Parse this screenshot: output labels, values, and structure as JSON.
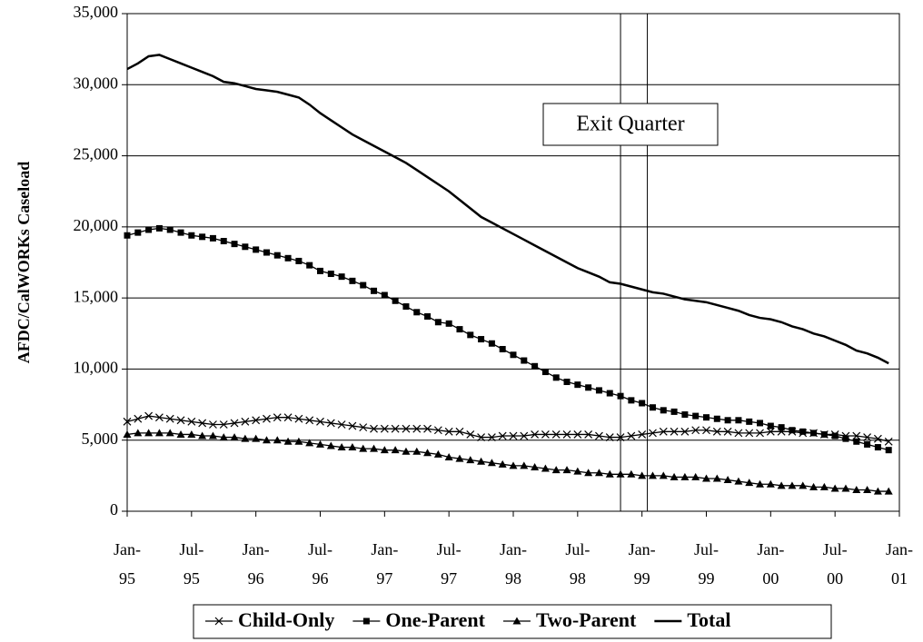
{
  "chart_data": {
    "type": "line",
    "y_label": "AFDC/CalWORKs Caseload",
    "categories": [
      "Jan-95",
      null,
      null,
      null,
      null,
      null,
      "Jul-95",
      null,
      null,
      null,
      null,
      null,
      "Jan-96",
      null,
      null,
      null,
      null,
      null,
      "Jul-96",
      null,
      null,
      null,
      null,
      null,
      "Jan-97",
      null,
      null,
      null,
      null,
      null,
      "Jul-97",
      null,
      null,
      null,
      null,
      null,
      "Jan-98",
      null,
      null,
      null,
      null,
      null,
      "Jul-98",
      null,
      null,
      null,
      null,
      null,
      "Jan-99",
      null,
      null,
      null,
      null,
      null,
      "Jul-99",
      null,
      null,
      null,
      null,
      null,
      "Jan-00",
      null,
      null,
      null,
      null,
      null,
      "Jul-00",
      null,
      null,
      null,
      null,
      null,
      "Jan-01"
    ],
    "series": [
      {
        "name": "Child-Only",
        "color": "#000000",
        "marker": "x",
        "values": [
          6300,
          6500,
          6700,
          6600,
          6500,
          6400,
          6300,
          6200,
          6100,
          6100,
          6200,
          6300,
          6400,
          6500,
          6600,
          6600,
          6500,
          6400,
          6300,
          6200,
          6100,
          6000,
          5900,
          5800,
          5800,
          5800,
          5800,
          5800,
          5800,
          5700,
          5600,
          5600,
          5400,
          5200,
          5200,
          5300,
          5300,
          5300,
          5400,
          5400,
          5400,
          5400,
          5400,
          5400,
          5300,
          5200,
          5200,
          5300,
          5400,
          5500,
          5600,
          5600,
          5600,
          5700,
          5700,
          5600,
          5600,
          5500,
          5500,
          5500,
          5600,
          5600,
          5600,
          5500,
          5500,
          5400,
          5400,
          5300,
          5300,
          5200,
          5100,
          4900,
          null
        ]
      },
      {
        "name": "One-Parent",
        "color": "#000000",
        "marker": "square",
        "values": [
          19400,
          19600,
          19800,
          19900,
          19800,
          19600,
          19400,
          19300,
          19200,
          19000,
          18800,
          18600,
          18400,
          18200,
          18000,
          17800,
          17600,
          17300,
          16900,
          16700,
          16500,
          16200,
          15900,
          15500,
          15200,
          14800,
          14400,
          14000,
          13700,
          13300,
          13200,
          12800,
          12400,
          12100,
          11800,
          11400,
          11000,
          10600,
          10200,
          9800,
          9400,
          9100,
          8900,
          8700,
          8500,
          8300,
          8100,
          7800,
          7600,
          7300,
          7100,
          7000,
          6800,
          6700,
          6600,
          6500,
          6400,
          6400,
          6300,
          6200,
          6000,
          5900,
          5700,
          5600,
          5500,
          5400,
          5300,
          5100,
          4900,
          4700,
          4500,
          4300,
          null
        ]
      },
      {
        "name": "Two-Parent",
        "color": "#000000",
        "marker": "triangle",
        "values": [
          5400,
          5500,
          5500,
          5500,
          5500,
          5400,
          5400,
          5300,
          5300,
          5200,
          5200,
          5100,
          5100,
          5000,
          5000,
          4900,
          4900,
          4800,
          4700,
          4600,
          4500,
          4500,
          4400,
          4400,
          4300,
          4300,
          4200,
          4200,
          4100,
          4000,
          3800,
          3700,
          3600,
          3500,
          3400,
          3300,
          3200,
          3200,
          3100,
          3000,
          2900,
          2900,
          2800,
          2700,
          2700,
          2600,
          2600,
          2600,
          2500,
          2500,
          2500,
          2400,
          2400,
          2400,
          2300,
          2300,
          2200,
          2100,
          2000,
          1900,
          1900,
          1800,
          1800,
          1800,
          1700,
          1700,
          1600,
          1600,
          1500,
          1500,
          1400,
          1400,
          null
        ]
      },
      {
        "name": "Total",
        "color": "#000000",
        "marker": "none",
        "values": [
          31100,
          31500,
          32000,
          32100,
          31800,
          31500,
          31200,
          30900,
          30600,
          30200,
          30100,
          29900,
          29700,
          29600,
          29500,
          29300,
          29100,
          28600,
          28000,
          27500,
          27000,
          26500,
          26100,
          25700,
          25300,
          24900,
          24500,
          24000,
          23500,
          23000,
          22500,
          21900,
          21300,
          20700,
          20300,
          19900,
          19500,
          19100,
          18700,
          18300,
          17900,
          17500,
          17100,
          16800,
          16500,
          16100,
          16000,
          15800,
          15600,
          15400,
          15300,
          15100,
          14900,
          14800,
          14700,
          14500,
          14300,
          14100,
          13800,
          13600,
          13500,
          13300,
          13000,
          12800,
          12500,
          12300,
          12000,
          11700,
          11300,
          11100,
          10800,
          10400,
          null
        ]
      }
    ],
    "ylim": [
      0,
      35000
    ],
    "yticks": [
      0,
      {
        "value": 5000,
        "label": "5,000"
      },
      {
        "value": 10000,
        "label": "10,000"
      },
      {
        "value": 15000,
        "label": "15,000"
      },
      {
        "value": 20000,
        "label": "20,000"
      },
      {
        "value": 25000,
        "label": "25,000"
      },
      {
        "value": 30000,
        "label": "30,000"
      },
      {
        "value": 35000,
        "label": "35,000"
      }
    ],
    "grid": true,
    "legend": "bottom",
    "exit_quarter": {
      "label": "Exit Quarter",
      "x": [
        46,
        48.5
      ]
    }
  }
}
